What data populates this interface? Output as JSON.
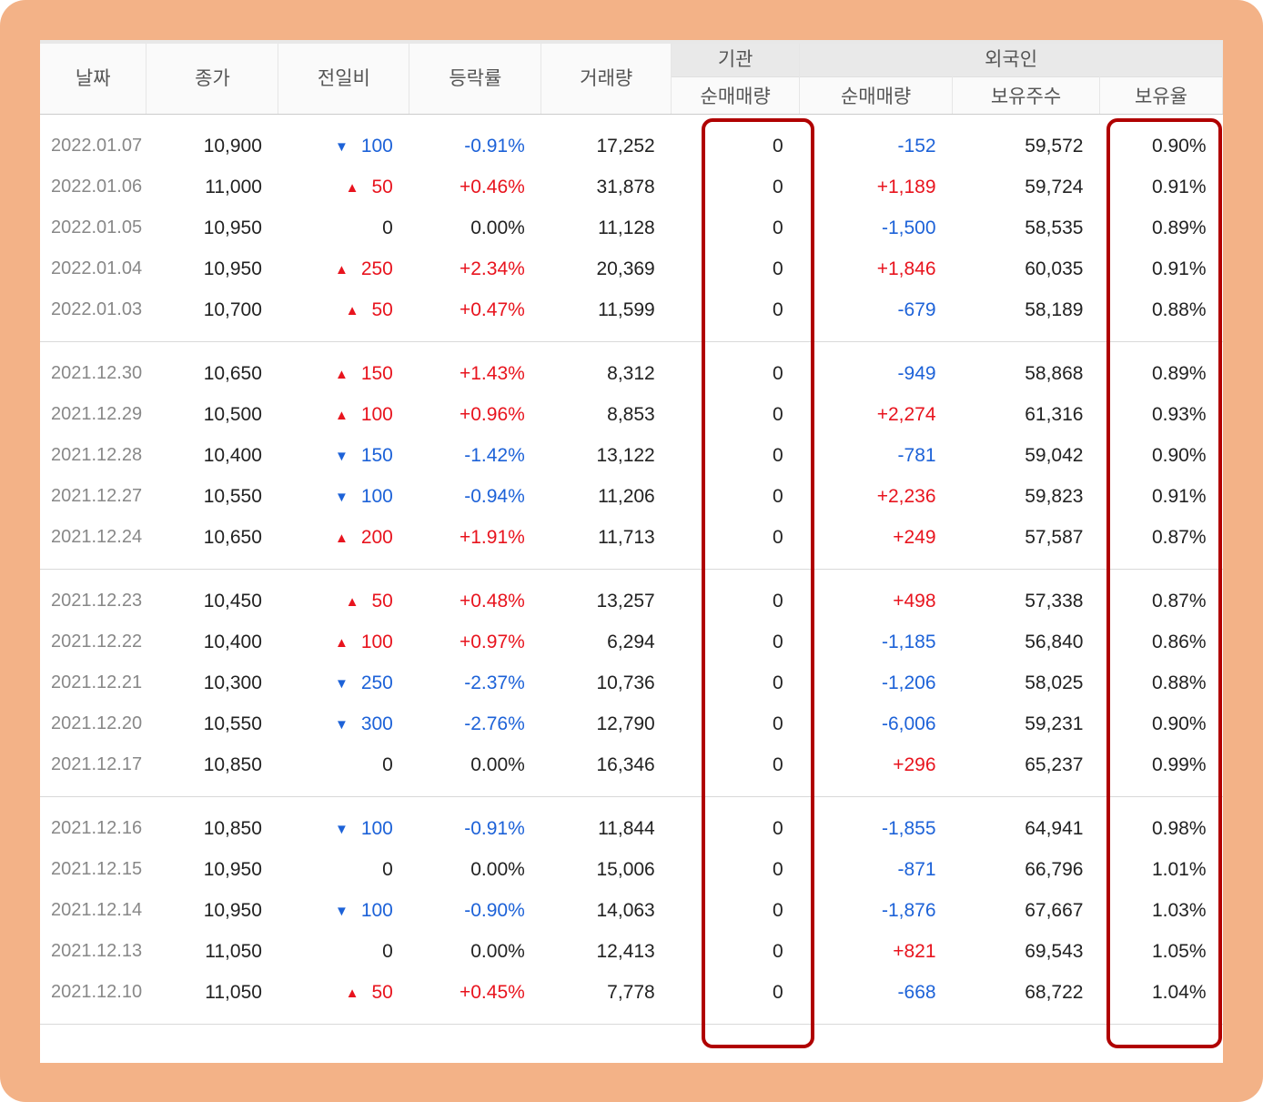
{
  "headers": {
    "date": "날짜",
    "close": "종가",
    "diff": "전일비",
    "rate": "등락률",
    "volume": "거래량",
    "inst_group": "기관",
    "inst_net": "순매매량",
    "foreign_group": "외국인",
    "foreign_net": "순매매량",
    "foreign_holdings": "보유주수",
    "foreign_ratio": "보유율"
  },
  "colors": {
    "up": "#e8141e",
    "down": "#1d62d8",
    "highlight": "#b00000",
    "frame": "#f3b287"
  },
  "icons": {
    "up": "up-triangle-icon",
    "down": "down-triangle-icon"
  },
  "groups": [
    {
      "rows": [
        {
          "date": "2022.01.07",
          "close": "10,900",
          "dir": "down",
          "diff": "100",
          "rate": "-0.91%",
          "volume": "17,252",
          "inst": "0",
          "fnet": "-152",
          "fhold": "59,572",
          "fratio": "0.90%"
        },
        {
          "date": "2022.01.06",
          "close": "11,000",
          "dir": "up",
          "diff": "50",
          "rate": "+0.46%",
          "volume": "31,878",
          "inst": "0",
          "fnet": "+1,189",
          "fhold": "59,724",
          "fratio": "0.91%"
        },
        {
          "date": "2022.01.05",
          "close": "10,950",
          "dir": "none",
          "diff": "0",
          "rate": "0.00%",
          "volume": "11,128",
          "inst": "0",
          "fnet": "-1,500",
          "fhold": "58,535",
          "fratio": "0.89%"
        },
        {
          "date": "2022.01.04",
          "close": "10,950",
          "dir": "up",
          "diff": "250",
          "rate": "+2.34%",
          "volume": "20,369",
          "inst": "0",
          "fnet": "+1,846",
          "fhold": "60,035",
          "fratio": "0.91%"
        },
        {
          "date": "2022.01.03",
          "close": "10,700",
          "dir": "up",
          "diff": "50",
          "rate": "+0.47%",
          "volume": "11,599",
          "inst": "0",
          "fnet": "-679",
          "fhold": "58,189",
          "fratio": "0.88%"
        }
      ]
    },
    {
      "rows": [
        {
          "date": "2021.12.30",
          "close": "10,650",
          "dir": "up",
          "diff": "150",
          "rate": "+1.43%",
          "volume": "8,312",
          "inst": "0",
          "fnet": "-949",
          "fhold": "58,868",
          "fratio": "0.89%"
        },
        {
          "date": "2021.12.29",
          "close": "10,500",
          "dir": "up",
          "diff": "100",
          "rate": "+0.96%",
          "volume": "8,853",
          "inst": "0",
          "fnet": "+2,274",
          "fhold": "61,316",
          "fratio": "0.93%"
        },
        {
          "date": "2021.12.28",
          "close": "10,400",
          "dir": "down",
          "diff": "150",
          "rate": "-1.42%",
          "volume": "13,122",
          "inst": "0",
          "fnet": "-781",
          "fhold": "59,042",
          "fratio": "0.90%"
        },
        {
          "date": "2021.12.27",
          "close": "10,550",
          "dir": "down",
          "diff": "100",
          "rate": "-0.94%",
          "volume": "11,206",
          "inst": "0",
          "fnet": "+2,236",
          "fhold": "59,823",
          "fratio": "0.91%"
        },
        {
          "date": "2021.12.24",
          "close": "10,650",
          "dir": "up",
          "diff": "200",
          "rate": "+1.91%",
          "volume": "11,713",
          "inst": "0",
          "fnet": "+249",
          "fhold": "57,587",
          "fratio": "0.87%"
        }
      ]
    },
    {
      "rows": [
        {
          "date": "2021.12.23",
          "close": "10,450",
          "dir": "up",
          "diff": "50",
          "rate": "+0.48%",
          "volume": "13,257",
          "inst": "0",
          "fnet": "+498",
          "fhold": "57,338",
          "fratio": "0.87%"
        },
        {
          "date": "2021.12.22",
          "close": "10,400",
          "dir": "up",
          "diff": "100",
          "rate": "+0.97%",
          "volume": "6,294",
          "inst": "0",
          "fnet": "-1,185",
          "fhold": "56,840",
          "fratio": "0.86%"
        },
        {
          "date": "2021.12.21",
          "close": "10,300",
          "dir": "down",
          "diff": "250",
          "rate": "-2.37%",
          "volume": "10,736",
          "inst": "0",
          "fnet": "-1,206",
          "fhold": "58,025",
          "fratio": "0.88%"
        },
        {
          "date": "2021.12.20",
          "close": "10,550",
          "dir": "down",
          "diff": "300",
          "rate": "-2.76%",
          "volume": "12,790",
          "inst": "0",
          "fnet": "-6,006",
          "fhold": "59,231",
          "fratio": "0.90%"
        },
        {
          "date": "2021.12.17",
          "close": "10,850",
          "dir": "none",
          "diff": "0",
          "rate": "0.00%",
          "volume": "16,346",
          "inst": "0",
          "fnet": "+296",
          "fhold": "65,237",
          "fratio": "0.99%"
        }
      ]
    },
    {
      "rows": [
        {
          "date": "2021.12.16",
          "close": "10,850",
          "dir": "down",
          "diff": "100",
          "rate": "-0.91%",
          "volume": "11,844",
          "inst": "0",
          "fnet": "-1,855",
          "fhold": "64,941",
          "fratio": "0.98%"
        },
        {
          "date": "2021.12.15",
          "close": "10,950",
          "dir": "none",
          "diff": "0",
          "rate": "0.00%",
          "volume": "15,006",
          "inst": "0",
          "fnet": "-871",
          "fhold": "66,796",
          "fratio": "1.01%"
        },
        {
          "date": "2021.12.14",
          "close": "10,950",
          "dir": "down",
          "diff": "100",
          "rate": "-0.90%",
          "volume": "14,063",
          "inst": "0",
          "fnet": "-1,876",
          "fhold": "67,667",
          "fratio": "1.03%"
        },
        {
          "date": "2021.12.13",
          "close": "11,050",
          "dir": "none",
          "diff": "0",
          "rate": "0.00%",
          "volume": "12,413",
          "inst": "0",
          "fnet": "+821",
          "fhold": "69,543",
          "fratio": "1.05%"
        },
        {
          "date": "2021.12.10",
          "close": "11,050",
          "dir": "up",
          "diff": "50",
          "rate": "+0.45%",
          "volume": "7,778",
          "inst": "0",
          "fnet": "-668",
          "fhold": "68,722",
          "fratio": "1.04%"
        }
      ]
    }
  ]
}
